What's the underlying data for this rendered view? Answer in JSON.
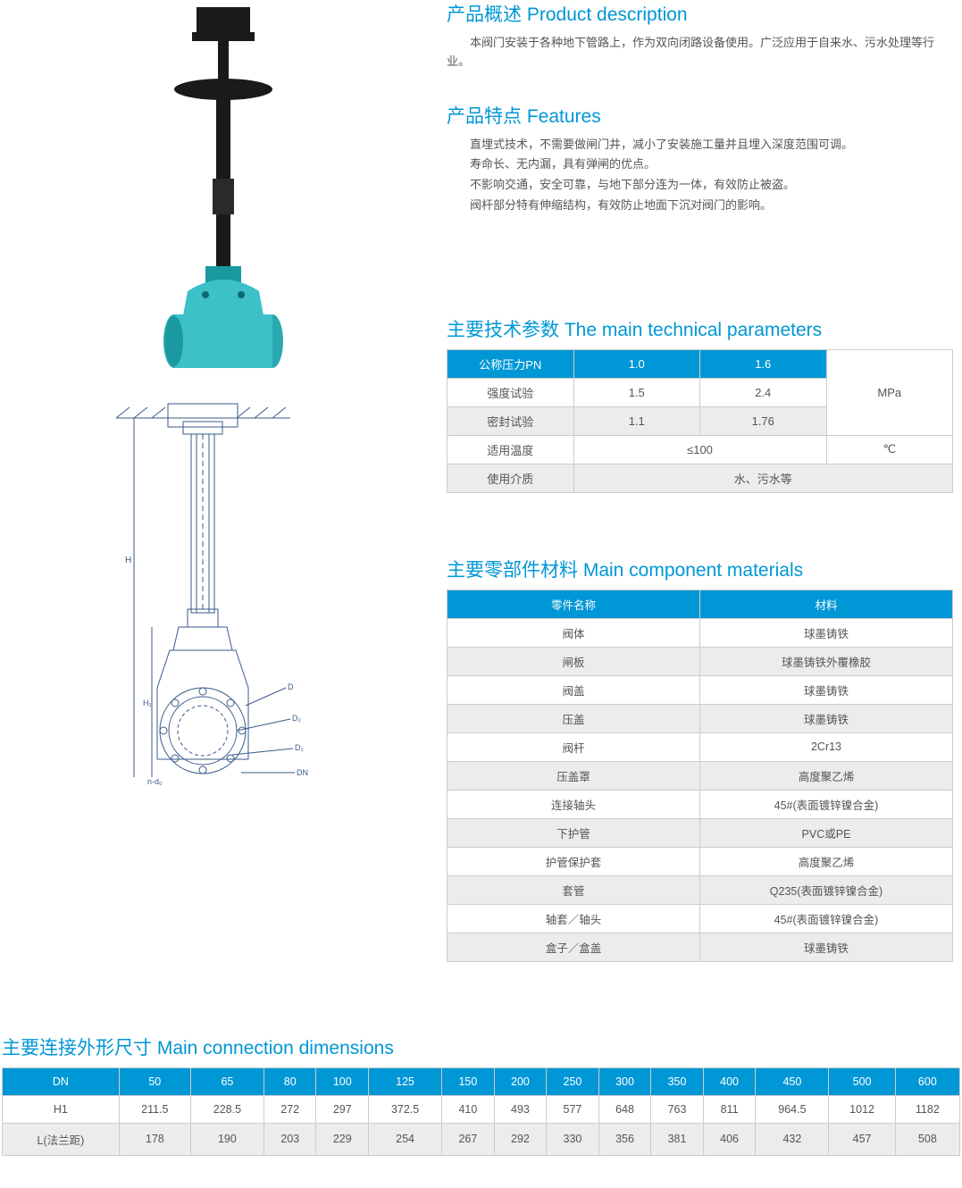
{
  "colors": {
    "accent": "#0097d6",
    "text": "#555555",
    "border": "#cccccc",
    "row_gray": "#ececec",
    "row_white": "#ffffff",
    "valve_body": "#3cc1c9",
    "valve_stem": "#1a1a1a"
  },
  "sections": {
    "desc_title": "产品概述 Product description",
    "desc_p1": "本阀门安装于各种地下管路上，作为双向闭路设备使用。广泛应用于自来水、污水处理等行业。",
    "features_title": "产品特点 Features",
    "feature_1": "直埋式技术，不需要做闸门井，减小了安装施工量并且埋入深度范围可调。",
    "feature_2": "寿命长、无内漏，具有弹闸的优点。",
    "feature_3": "不影响交通，安全可靠，与地下部分连为一体，有效防止被盗。",
    "feature_4": "阀杆部分特有伸缩结构，有效防止地面下沉对阀门的影响。",
    "tech_title": "主要技术参数 The main technical parameters",
    "mat_title": "主要零部件材料 Main component materials",
    "dim_title": "主要连接外形尺寸 Main connection dimensions"
  },
  "tech": {
    "h_pn": "公称压力PN",
    "h_10": "1.0",
    "h_16": "1.6",
    "unit_mpa": "MPa",
    "r1_label": "强度试验",
    "r1_a": "1.5",
    "r1_b": "2.4",
    "r2_label": "密封试验",
    "r2_a": "1.1",
    "r2_b": "1.76",
    "r3_label": "适用温度",
    "r3_val": "≤100",
    "r3_unit": "℃",
    "r4_label": "使用介质",
    "r4_val": "水、污水等"
  },
  "mat": {
    "h_part": "零件名称",
    "h_mat": "材料",
    "rows": [
      {
        "p": "阀体",
        "m": "球墨铸铁"
      },
      {
        "p": "闸板",
        "m": "球墨铸铁外覆橡胶"
      },
      {
        "p": "阀盖",
        "m": "球墨铸铁"
      },
      {
        "p": "压盖",
        "m": "球墨铸铁"
      },
      {
        "p": "阀杆",
        "m": "2Cr13"
      },
      {
        "p": "压盖罩",
        "m": "高度聚乙烯"
      },
      {
        "p": "连接轴头",
        "m": "45#(表面镀锌镍合金)"
      },
      {
        "p": "下护管",
        "m": "PVC或PE"
      },
      {
        "p": "护管保护套",
        "m": "高度聚乙烯"
      },
      {
        "p": "套管",
        "m": "Q235(表面镀锌镍合金)"
      },
      {
        "p": "轴套／轴头",
        "m": "45#(表面镀锌镍合金)"
      },
      {
        "p": "盒子／盒盖",
        "m": "球墨铸铁"
      }
    ]
  },
  "dim": {
    "labels": {
      "dn": "DN",
      "h1": "H1",
      "l": "L(法兰距)"
    },
    "dn": [
      "50",
      "65",
      "80",
      "100",
      "125",
      "150",
      "200",
      "250",
      "300",
      "350",
      "400",
      "450",
      "500",
      "600"
    ],
    "h1": [
      "211.5",
      "228.5",
      "272",
      "297",
      "372.5",
      "410",
      "493",
      "577",
      "648",
      "763",
      "811",
      "964.5",
      "1012",
      "1182"
    ],
    "l": [
      "178",
      "190",
      "203",
      "229",
      "254",
      "267",
      "292",
      "330",
      "356",
      "381",
      "406",
      "432",
      "457",
      "508"
    ]
  }
}
